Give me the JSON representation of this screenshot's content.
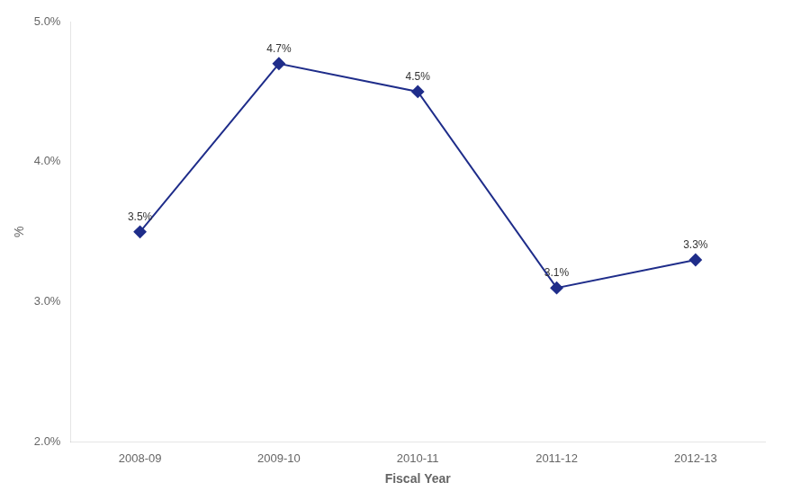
{
  "chart_data": {
    "type": "line",
    "xlabel": "Fiscal Year",
    "ylabel": "%",
    "categories": [
      "2008-09",
      "2009-10",
      "2010-11",
      "2011-12",
      "2012-13"
    ],
    "values": [
      3.5,
      4.7,
      4.5,
      3.1,
      3.3
    ],
    "value_labels": [
      "3.5%",
      "4.7%",
      "4.5%",
      "3.1%",
      "3.3%"
    ],
    "data_labels": true,
    "color": "#1F2D8A",
    "marker": "diamond",
    "ylim": [
      2.0,
      5.0
    ],
    "yticks": [
      {
        "value": 2.0,
        "label": "2.0%"
      },
      {
        "value": 3.0,
        "label": "3.0%"
      },
      {
        "value": 4.0,
        "label": "4.0%"
      },
      {
        "value": 5.0,
        "label": "5.0%"
      }
    ],
    "grid": false
  }
}
